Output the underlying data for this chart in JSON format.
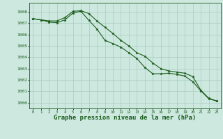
{
  "title": "Graphe pression niveau de la mer (hPa)",
  "background_color": "#cce8df",
  "grid_color": "#aaccbf",
  "line_color1": "#1a5c1a",
  "line_color2": "#1a5c1a",
  "x_values": [
    0,
    1,
    2,
    3,
    4,
    5,
    6,
    7,
    8,
    9,
    10,
    11,
    12,
    13,
    14,
    15,
    16,
    17,
    18,
    19,
    20,
    21,
    22,
    23
  ],
  "series1": [
    1007.4,
    1007.3,
    1007.2,
    1007.2,
    1007.5,
    1008.05,
    1008.1,
    1007.85,
    1007.2,
    1006.65,
    1006.1,
    1005.5,
    1005.0,
    1004.4,
    1004.1,
    1003.5,
    1003.0,
    1002.8,
    1002.7,
    1002.6,
    1002.3,
    1001.1,
    1000.4,
    1000.15
  ],
  "series2": [
    1007.4,
    1007.3,
    1007.1,
    1007.05,
    1007.3,
    1007.9,
    1008.05,
    1007.25,
    1006.5,
    1005.5,
    1005.2,
    1004.9,
    1004.4,
    1003.9,
    1003.1,
    1002.55,
    1002.55,
    1002.6,
    1002.5,
    1002.35,
    1001.85,
    1001.05,
    1000.35,
    1000.15
  ],
  "ylim": [
    999.5,
    1008.8
  ],
  "yticks": [
    1000,
    1001,
    1002,
    1003,
    1004,
    1005,
    1006,
    1007,
    1008
  ],
  "xlabel_fontsize": 6.5,
  "marker_size": 2.5,
  "figsize": [
    3.2,
    2.0
  ],
  "dpi": 100
}
